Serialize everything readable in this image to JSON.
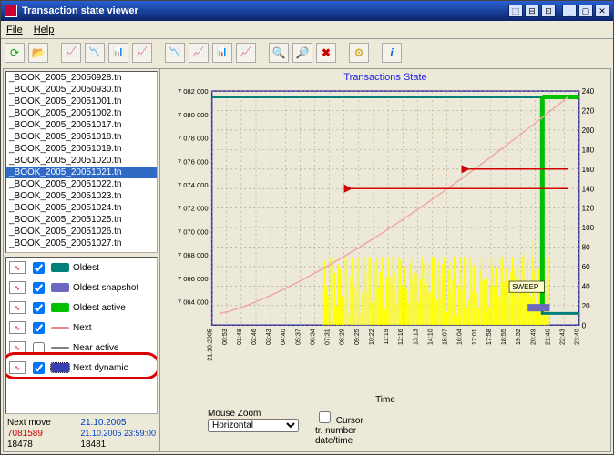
{
  "window": {
    "title": "Transaction state viewer"
  },
  "menu": {
    "file": "File",
    "help": "Help"
  },
  "sidebar": {
    "items": [
      "_BOOK_2005_20050928.tn",
      "_BOOK_2005_20050930.tn",
      "_BOOK_2005_20051001.tn",
      "_BOOK_2005_20051002.tn",
      "_BOOK_2005_20051017.tn",
      "_BOOK_2005_20051018.tn",
      "_BOOK_2005_20051019.tn",
      "_BOOK_2005_20051020.tn",
      "_BOOK_2005_20051021.tn",
      "_BOOK_2005_20051022.tn",
      "_BOOK_2005_20051023.tn",
      "_BOOK_2005_20051024.tn",
      "_BOOK_2005_20051025.tn",
      "_BOOK_2005_20051026.tn",
      "_BOOK_2005_20051027.tn"
    ],
    "selected_index": 8
  },
  "legend": {
    "items": [
      {
        "label": "Oldest",
        "color": "#00807a",
        "checked": true,
        "thick": true
      },
      {
        "label": "Oldest snapshot",
        "color": "#6c68c0",
        "checked": true,
        "thick": true
      },
      {
        "label": "Oldest active",
        "color": "#00c000",
        "checked": true,
        "thick": true
      },
      {
        "label": "Next",
        "color": "#e88",
        "checked": true,
        "thick": false
      },
      {
        "label": "Near active",
        "color": "#808080",
        "checked": false,
        "thick": false
      },
      {
        "label": "Next dynamic",
        "color": "#3a3fb0",
        "checked": true,
        "thick": true,
        "highlight": true
      }
    ]
  },
  "status": {
    "row1_label": "Next move",
    "row1_a": "7081589",
    "row1_b_date": "21.10.2005",
    "row1_b_time": "21.10.2005 23:59:00",
    "row2_a": "18478",
    "row2_b": "18481"
  },
  "chart": {
    "title": "Transactions State",
    "badge": "SWEEP",
    "y_left": {
      "min": 7062000,
      "max": 7082000,
      "ticks": [
        7064000,
        7066000,
        7068000,
        7070000,
        7072000,
        7074000,
        7076000,
        7078000,
        7080000,
        7082000
      ],
      "tick_labels": [
        "7 064 000",
        "7 066 000",
        "7 068 000",
        "7 070 000",
        "7 072 000",
        "7 074 000",
        "7 076 000",
        "7 078 000",
        "7 080 000",
        "7 082 000"
      ]
    },
    "y_right": {
      "min": 0,
      "max": 240,
      "ticks": [
        0,
        20,
        40,
        60,
        80,
        100,
        120,
        140,
        160,
        180,
        200,
        220,
        240
      ]
    },
    "x": {
      "ticks": [
        "21.10.2005",
        "00:53",
        "01:49",
        "02:46",
        "03:43",
        "04:40",
        "05:37",
        "06:34",
        "07:31",
        "08:29",
        "09:25",
        "10:22",
        "11:19",
        "12:16",
        "13:13",
        "14:10",
        "15:07",
        "16:04",
        "17:01",
        "17:58",
        "18:55",
        "19:52",
        "20:49",
        "21:46",
        "22:43",
        "23:40"
      ]
    },
    "time_axis_label": "Time",
    "colors": {
      "bg": "#ece9d8",
      "grid": "#a29a72",
      "plot_border": "#3030a0",
      "yellow": "#ffff00",
      "pink": "#f0a8a8",
      "teal": "#00807a",
      "green": "#00c000",
      "purple": "#6c68c0",
      "red_arrow": "#d00000"
    }
  },
  "controls": {
    "zoom_label": "Mouse Zoom",
    "zoom_value": "Horizontal",
    "cursor_label": "Cursor",
    "cursor_checked": false,
    "tr_number": "tr. number",
    "date_time": "date/time"
  }
}
